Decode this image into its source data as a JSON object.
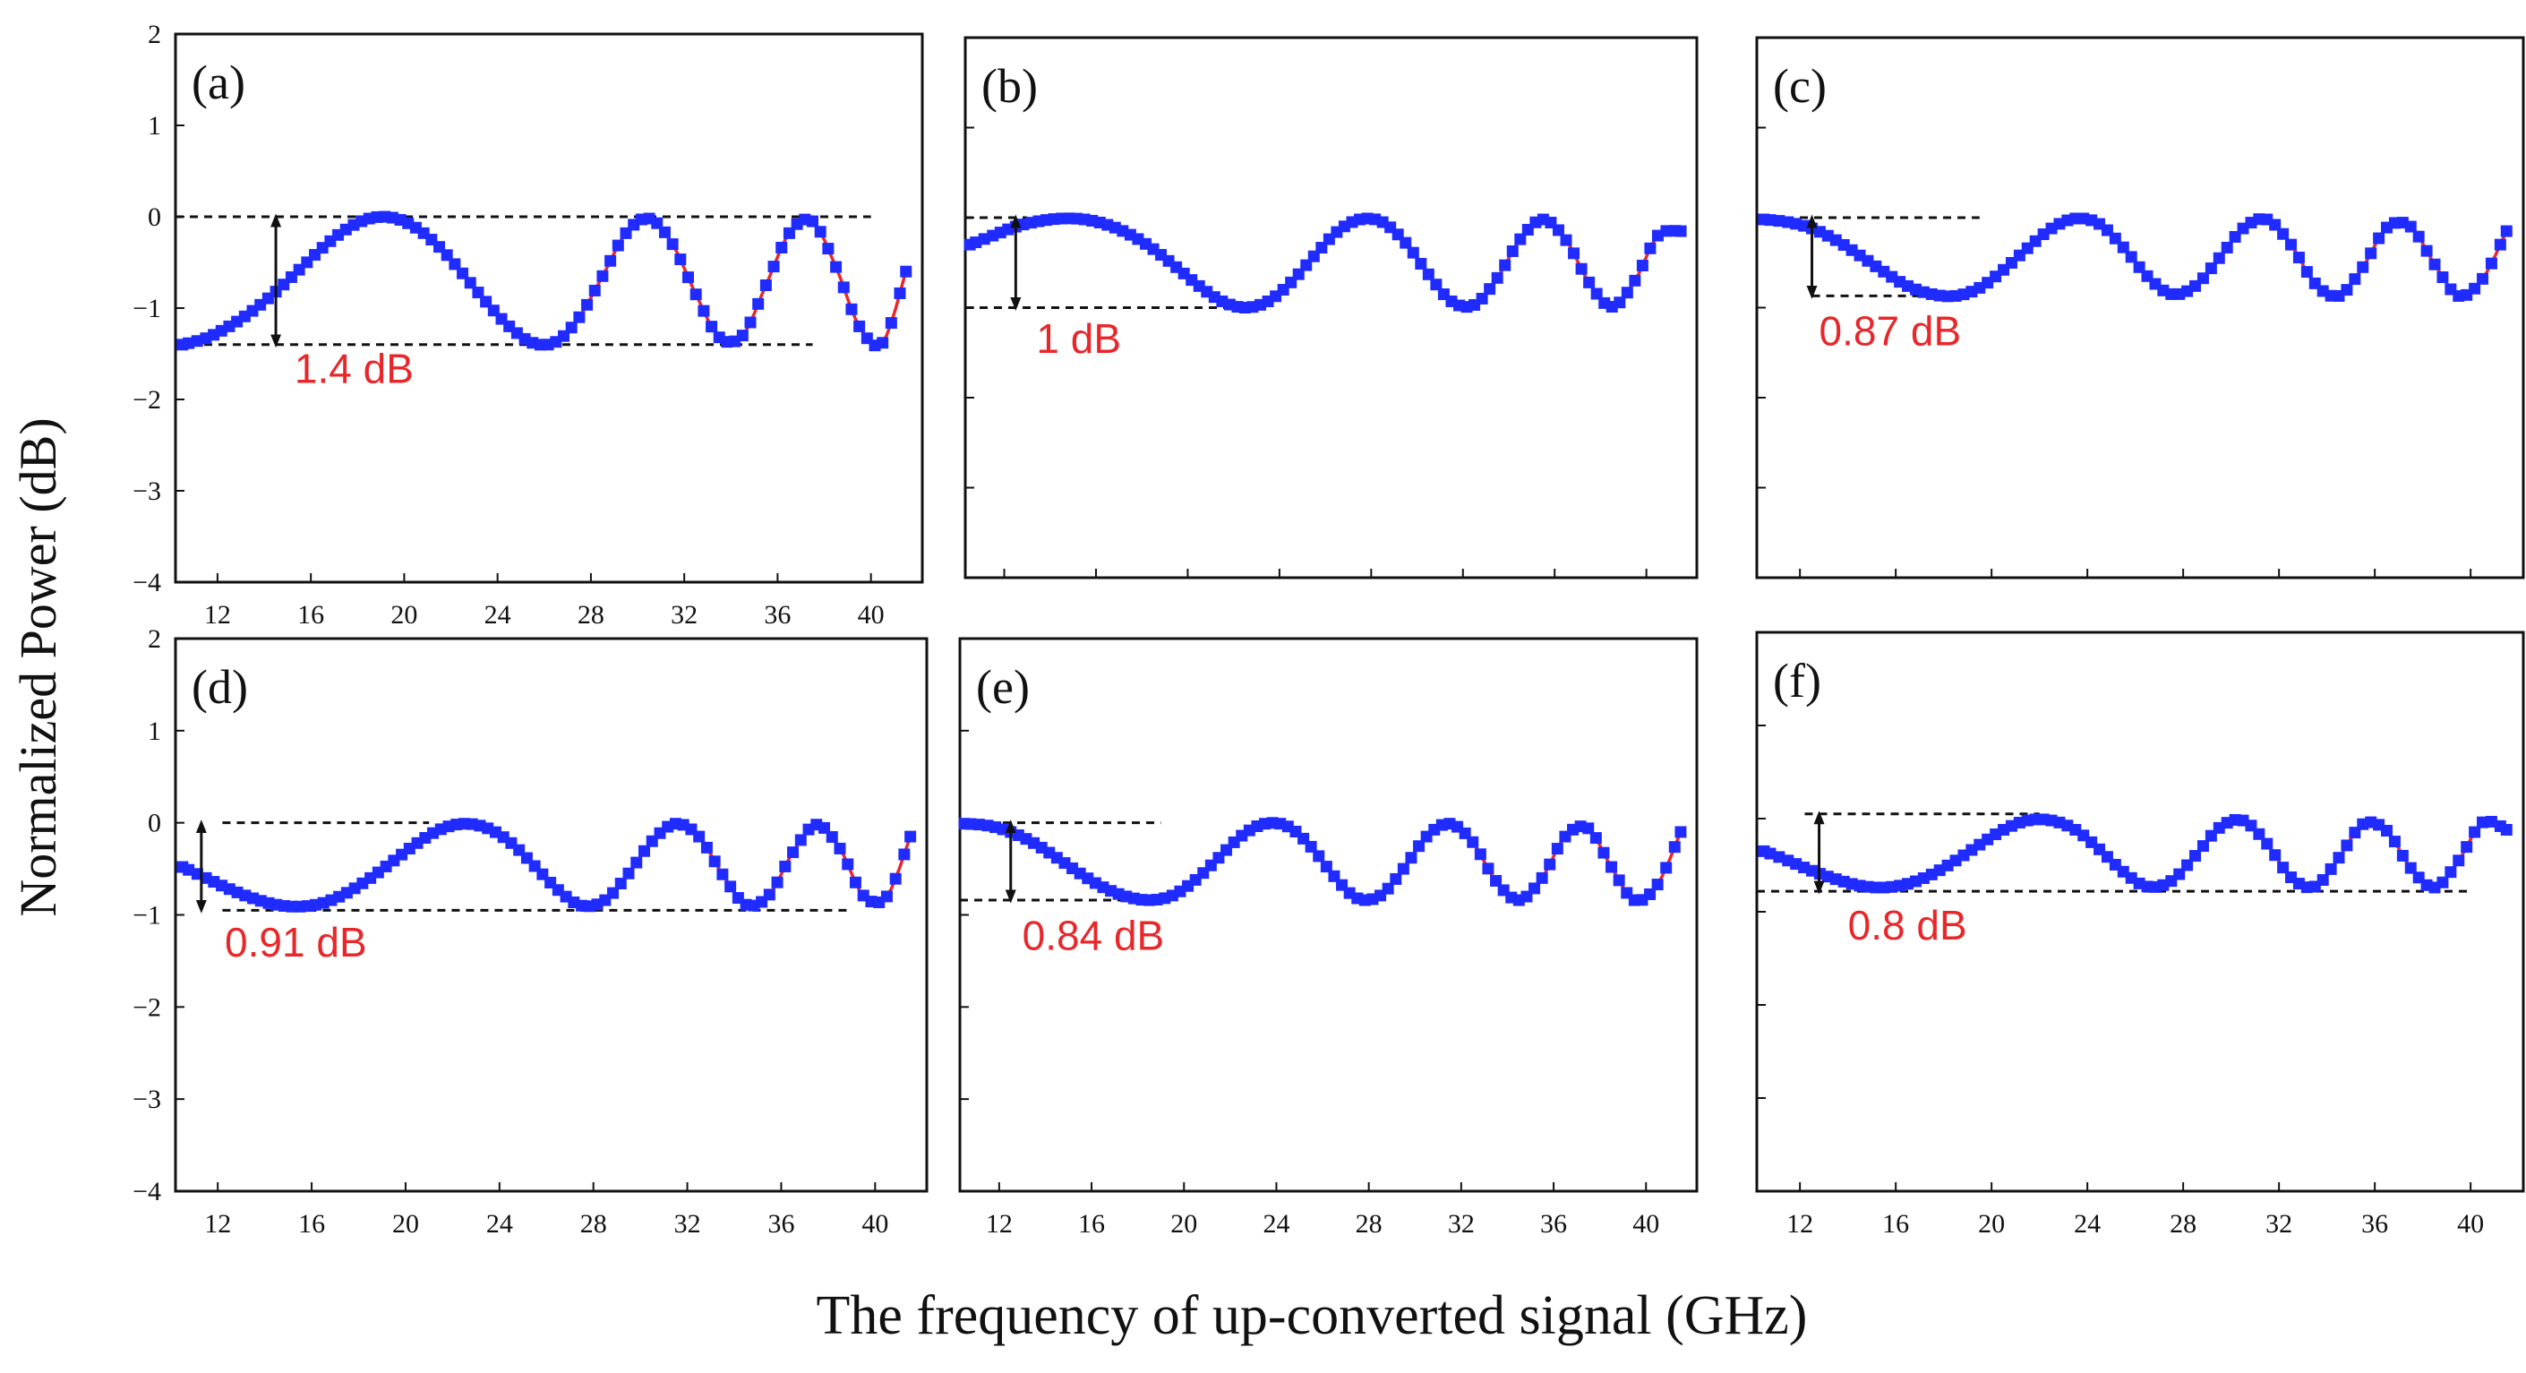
{
  "figure": {
    "ylabel": "Normalized Power (dB)",
    "xlabel": "The frequency of up-converted signal (GHz)",
    "colors": {
      "marker": "#1f2bff",
      "line": "#e8272a",
      "frame": "#111111",
      "annotation": "#e8272a"
    }
  },
  "chart_data": [
    {
      "type": "line",
      "panel": "(a)",
      "xlim": [
        10.2,
        42.2
      ],
      "ylim": [
        -4,
        2
      ],
      "x_ticks": [
        12,
        16,
        20,
        24,
        28,
        32,
        36,
        40
      ],
      "y_ticks": [
        -4,
        -3,
        -2,
        -1,
        0,
        1,
        2
      ],
      "x_tick_labels": [
        "12",
        "16",
        "20",
        "24",
        "28",
        "32",
        "36",
        "40"
      ],
      "y_tick_labels": [
        "−4",
        "−3",
        "−2",
        "−1",
        "0",
        "1",
        "2"
      ],
      "x_range": [
        10.5,
        42
      ],
      "series": [
        {
          "name": "measured",
          "style": "squares",
          "x": [
            10.5,
            11.5,
            12.5,
            13.5,
            14.5,
            15.5,
            16.5,
            17.5,
            18.5,
            19.5,
            20.5,
            21.5,
            22.5,
            23.5,
            24.5,
            25.5,
            26.5,
            27.5,
            28.5,
            29.5,
            30.5,
            31.5,
            32.5,
            33.5,
            34.5,
            35.5,
            36.5,
            37.5,
            38.5,
            39.5,
            40.5,
            41.5
          ],
          "y": [
            -1.4,
            -1.33,
            -1.2,
            -1.03,
            -0.82,
            -0.58,
            -0.34,
            -0.14,
            -0.02,
            -0.01,
            -0.12,
            -0.33,
            -0.62,
            -0.93,
            -1.2,
            -1.38,
            -1.37,
            -1.1,
            -0.65,
            -0.18,
            -0.02,
            -0.3,
            -0.85,
            -1.32,
            -1.3,
            -0.75,
            -0.18,
            -0.05,
            -0.55,
            -1.2,
            -1.38,
            -0.6
          ]
        },
        {
          "name": "fit",
          "style": "line"
        }
      ],
      "ref_lines": [
        {
          "y": 0,
          "x_from": 10.2,
          "x_to": 40
        },
        {
          "y": -1.4,
          "x_from": 10.2,
          "x_to": 37.5
        }
      ],
      "arrow": {
        "x": 14.5,
        "y_top": 0,
        "y_bottom": -1.4
      },
      "annotation": {
        "text": "1.4 dB",
        "x": 15.3,
        "y": -1.82
      }
    },
    {
      "type": "line",
      "panel": "(b)",
      "xlim": [
        10.3,
        42.2
      ],
      "ylim": [
        -4,
        2
      ],
      "x_ticks": [
        12,
        16,
        20,
        24,
        28,
        32,
        36,
        40
      ],
      "y_ticks": [
        -4,
        -3,
        -2,
        -1,
        0,
        1,
        2
      ],
      "x_tick_labels": [],
      "y_tick_labels": [],
      "x_range": [
        10.5,
        42
      ],
      "series": [
        {
          "name": "measured",
          "style": "squares",
          "x": [
            10.5,
            11.5,
            12.5,
            13.5,
            14.5,
            15.5,
            16.5,
            17.5,
            18.5,
            19.5,
            20.5,
            21.5,
            22.5,
            23.5,
            24.5,
            25.5,
            26.5,
            27.5,
            28.5,
            29.5,
            30.5,
            31.5,
            32.5,
            33.5,
            34.5,
            35.5,
            36.5,
            37.5,
            38.5,
            39.5,
            40.5,
            41.5
          ],
          "y": [
            -0.3,
            -0.2,
            -0.1,
            -0.04,
            -0.01,
            -0.02,
            -0.08,
            -0.19,
            -0.35,
            -0.55,
            -0.76,
            -0.93,
            -1.0,
            -0.93,
            -0.72,
            -0.43,
            -0.16,
            -0.02,
            -0.05,
            -0.28,
            -0.63,
            -0.93,
            -0.97,
            -0.67,
            -0.24,
            -0.02,
            -0.25,
            -0.72,
            -0.99,
            -0.7,
            -0.2,
            -0.15
          ]
        },
        {
          "name": "fit",
          "style": "line"
        }
      ],
      "ref_lines": [
        {
          "y": 0,
          "x_from": 10.3,
          "x_to": 13
        },
        {
          "y": -1.0,
          "x_from": 10.3,
          "x_to": 22
        }
      ],
      "arrow": {
        "x": 12.5,
        "y_top": 0,
        "y_bottom": -1.0
      },
      "annotation": {
        "text": "1 dB",
        "x": 13.4,
        "y": -1.5
      }
    },
    {
      "type": "line",
      "panel": "(c)",
      "xlim": [
        10.2,
        42.2
      ],
      "ylim": [
        -4,
        2
      ],
      "x_ticks": [
        12,
        16,
        20,
        24,
        28,
        32,
        36,
        40
      ],
      "y_ticks": [
        -4,
        -3,
        -2,
        -1,
        0,
        1,
        2
      ],
      "x_tick_labels": [],
      "y_tick_labels": [],
      "x_range": [
        10.5,
        42
      ],
      "series": [
        {
          "name": "measured",
          "style": "squares",
          "x": [
            10.5,
            11.5,
            12.5,
            13.5,
            14.5,
            15.5,
            16.5,
            17.5,
            18.5,
            19.5,
            20.5,
            21.5,
            22.5,
            23.5,
            24.5,
            25.5,
            26.5,
            27.5,
            28.5,
            29.5,
            30.5,
            31.5,
            32.5,
            33.5,
            34.5,
            35.5,
            36.5,
            37.5,
            38.5,
            39.5,
            40.5,
            41.5
          ],
          "y": [
            -0.02,
            -0.05,
            -0.12,
            -0.25,
            -0.42,
            -0.6,
            -0.76,
            -0.85,
            -0.87,
            -0.78,
            -0.58,
            -0.34,
            -0.12,
            -0.01,
            -0.07,
            -0.33,
            -0.65,
            -0.85,
            -0.76,
            -0.45,
            -0.12,
            -0.02,
            -0.3,
            -0.73,
            -0.87,
            -0.55,
            -0.11,
            -0.1,
            -0.52,
            -0.87,
            -0.68,
            -0.15
          ]
        },
        {
          "name": "fit",
          "style": "line"
        }
      ],
      "ref_lines": [
        {
          "y": 0,
          "x_from": 10.2,
          "x_to": 19.5
        },
        {
          "y": -0.87,
          "x_from": 12.5,
          "x_to": 19
        }
      ],
      "arrow": {
        "x": 12.5,
        "y_top": 0,
        "y_bottom": -0.87
      },
      "annotation": {
        "text": "0.87 dB",
        "x": 12.8,
        "y": -1.42
      }
    },
    {
      "type": "line",
      "panel": "(d)",
      "xlim": [
        10.2,
        42.2
      ],
      "ylim": [
        -4,
        2
      ],
      "x_ticks": [
        12,
        16,
        20,
        24,
        28,
        32,
        36,
        40
      ],
      "y_ticks": [
        -4,
        -3,
        -2,
        -1,
        0,
        1,
        2
      ],
      "x_tick_labels": [
        "12",
        "16",
        "20",
        "24",
        "28",
        "32",
        "36",
        "40"
      ],
      "y_tick_labels": [
        "−4",
        "−3",
        "−2",
        "−1",
        "0",
        "1",
        "2"
      ],
      "x_range": [
        10.5,
        42
      ],
      "series": [
        {
          "name": "measured",
          "style": "squares",
          "x": [
            10.5,
            11.5,
            12.5,
            13.5,
            14.5,
            15.5,
            16.5,
            17.5,
            18.5,
            19.5,
            20.5,
            21.5,
            22.5,
            23.5,
            24.5,
            25.5,
            26.5,
            27.5,
            28.5,
            29.5,
            30.5,
            31.5,
            32.5,
            33.5,
            34.5,
            35.5,
            36.5,
            37.5,
            38.5,
            39.5,
            40.5,
            41.5
          ],
          "y": [
            -0.48,
            -0.6,
            -0.72,
            -0.82,
            -0.89,
            -0.91,
            -0.87,
            -0.76,
            -0.6,
            -0.41,
            -0.22,
            -0.07,
            -0.01,
            -0.06,
            -0.22,
            -0.47,
            -0.73,
            -0.9,
            -0.84,
            -0.55,
            -0.2,
            -0.01,
            -0.15,
            -0.56,
            -0.89,
            -0.78,
            -0.32,
            -0.02,
            -0.28,
            -0.79,
            -0.8,
            -0.15
          ]
        },
        {
          "name": "fit",
          "style": "line"
        }
      ],
      "ref_lines": [
        {
          "y": 0,
          "x_from": 12.2,
          "x_to": 21
        },
        {
          "y": -0.95,
          "x_from": 12.2,
          "x_to": 39
        }
      ],
      "arrow": {
        "x": 11.3,
        "y_top": 0,
        "y_bottom": -0.95
      },
      "annotation": {
        "text": "0.91 dB",
        "x": 12.3,
        "y": -1.45
      }
    },
    {
      "type": "line",
      "panel": "(e)",
      "xlim": [
        10.3,
        42.2
      ],
      "ylim": [
        -4,
        2
      ],
      "x_ticks": [
        12,
        16,
        20,
        24,
        28,
        32,
        36,
        40
      ],
      "y_ticks": [
        -4,
        -3,
        -2,
        -1,
        0,
        1,
        2
      ],
      "x_tick_labels": [
        "12",
        "16",
        "20",
        "24",
        "28",
        "32",
        "36",
        "40"
      ],
      "y_tick_labels": [],
      "x_range": [
        10.5,
        42
      ],
      "series": [
        {
          "name": "measured",
          "style": "squares",
          "x": [
            10.5,
            11.5,
            12.5,
            13.5,
            14.5,
            15.5,
            16.5,
            17.5,
            18.5,
            19.5,
            20.5,
            21.5,
            22.5,
            23.5,
            24.5,
            25.5,
            26.5,
            27.5,
            28.5,
            29.5,
            30.5,
            31.5,
            32.5,
            33.5,
            34.5,
            35.5,
            36.5,
            37.5,
            38.5,
            39.5,
            40.5,
            41.5
          ],
          "y": [
            -0.01,
            -0.03,
            -0.1,
            -0.22,
            -0.38,
            -0.55,
            -0.7,
            -0.8,
            -0.84,
            -0.79,
            -0.62,
            -0.38,
            -0.14,
            -0.01,
            -0.04,
            -0.26,
            -0.58,
            -0.82,
            -0.79,
            -0.5,
            -0.15,
            -0.01,
            -0.21,
            -0.63,
            -0.84,
            -0.6,
            -0.15,
            -0.06,
            -0.48,
            -0.84,
            -0.67,
            -0.1
          ]
        },
        {
          "name": "fit",
          "style": "line"
        }
      ],
      "ref_lines": [
        {
          "y": 0,
          "x_from": 10.3,
          "x_to": 19
        },
        {
          "y": -0.84,
          "x_from": 10.3,
          "x_to": 19
        }
      ],
      "arrow": {
        "x": 12.5,
        "y_top": 0,
        "y_bottom": -0.84
      },
      "annotation": {
        "text": "0.84 dB",
        "x": 13,
        "y": -1.38
      }
    },
    {
      "type": "line",
      "panel": "(f)",
      "xlim": [
        10.2,
        42.2
      ],
      "ylim": [
        -4,
        2
      ],
      "x_ticks": [
        12,
        16,
        20,
        24,
        28,
        32,
        36,
        40
      ],
      "y_ticks": [
        -4,
        -3,
        -2,
        -1,
        0,
        1,
        2
      ],
      "x_tick_labels": [
        "12",
        "16",
        "20",
        "24",
        "28",
        "32",
        "36",
        "40"
      ],
      "y_tick_labels": [],
      "x_range": [
        10.5,
        42
      ],
      "series": [
        {
          "name": "measured",
          "style": "squares",
          "x": [
            10.5,
            11.5,
            12.5,
            13.5,
            14.5,
            15.5,
            16.5,
            17.5,
            18.5,
            19.5,
            20.5,
            21.5,
            22.5,
            23.5,
            24.5,
            25.5,
            26.5,
            27.5,
            28.5,
            29.5,
            30.5,
            31.5,
            32.5,
            33.5,
            34.5,
            35.5,
            36.5,
            37.5,
            38.5,
            39.5,
            40.5,
            41.5
          ],
          "y": [
            -0.35,
            -0.45,
            -0.56,
            -0.65,
            -0.72,
            -0.74,
            -0.7,
            -0.6,
            -0.45,
            -0.28,
            -0.12,
            -0.02,
            -0.02,
            -0.12,
            -0.33,
            -0.57,
            -0.73,
            -0.67,
            -0.4,
            -0.1,
            -0.02,
            -0.27,
            -0.63,
            -0.73,
            -0.42,
            -0.06,
            -0.13,
            -0.53,
            -0.74,
            -0.45,
            -0.04,
            -0.12
          ]
        },
        {
          "name": "fit",
          "style": "line"
        }
      ],
      "ref_lines": [
        {
          "y": 0.05,
          "x_from": 12.2,
          "x_to": 22
        },
        {
          "y": -0.78,
          "x_from": 10.2,
          "x_to": 40
        }
      ],
      "arrow": {
        "x": 12.8,
        "y_top": 0.05,
        "y_bottom": -0.78
      },
      "annotation": {
        "text": "0.8 dB",
        "x": 14,
        "y": -1.3
      }
    }
  ]
}
